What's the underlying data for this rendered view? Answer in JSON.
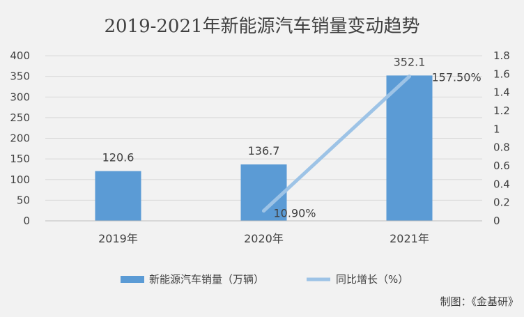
{
  "chart_data": {
    "type": "bar",
    "title": "2019-2021年新能源汽车销量变动趋势",
    "categories": [
      "2019年",
      "2020年",
      "2021年"
    ],
    "series": [
      {
        "name": "新能源汽车销量（万辆）",
        "type": "bar",
        "axis": "left",
        "values": [
          120.6,
          136.7,
          352.1
        ],
        "data_labels": [
          "120.6",
          "136.7",
          "352.1"
        ],
        "color": "#5b9bd5"
      },
      {
        "name": "同比增长（%）",
        "type": "line",
        "axis": "right",
        "x": [
          "2020年",
          "2021年"
        ],
        "values": [
          0.109,
          1.575
        ],
        "data_labels": [
          "10.90%",
          "157.50%"
        ],
        "color": "#9dc3e6"
      }
    ],
    "y_left": {
      "ylim": [
        0,
        400
      ],
      "ticks": [
        "0",
        "50",
        "100",
        "150",
        "200",
        "250",
        "300",
        "350",
        "400"
      ]
    },
    "y_right": {
      "ylim": [
        0,
        1.8
      ],
      "ticks": [
        "0",
        "0.2",
        "0.4",
        "0.6",
        "0.8",
        "1",
        "1.2",
        "1.4",
        "1.6",
        "1.8"
      ]
    },
    "grid": true,
    "legend": "bottom"
  },
  "source_note": "制图：《金基研》"
}
